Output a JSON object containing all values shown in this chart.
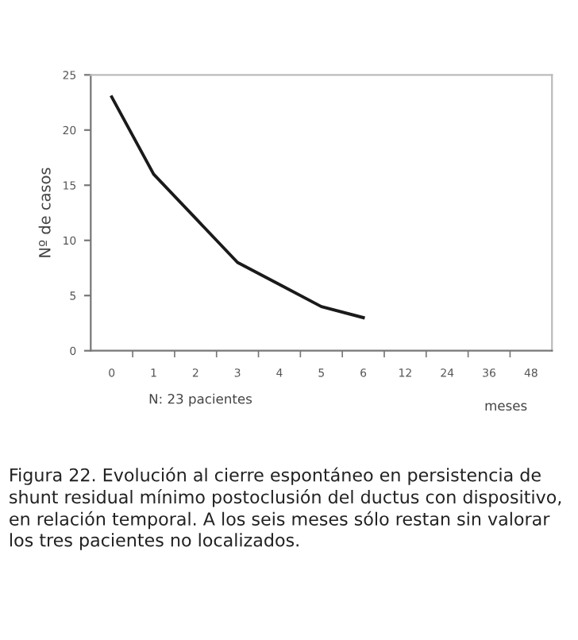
{
  "chart_data": {
    "type": "line",
    "categories": [
      "0",
      "1",
      "2",
      "3",
      "4",
      "5",
      "6",
      "12",
      "24",
      "36",
      "48"
    ],
    "series": [
      {
        "color": "#1a1a1a",
        "values": [
          23,
          16,
          12,
          8,
          6,
          4,
          3,
          null,
          null,
          null,
          null
        ]
      }
    ],
    "ylabel": "Nº de casos",
    "xlabel": "meses",
    "ylim": [
      0,
      25
    ],
    "yticks": [
      0,
      5,
      10,
      15,
      20,
      25
    ],
    "grid": false,
    "legend": false,
    "marker": "none",
    "line_style": "solid",
    "annotations": [
      "N: 23 pacientes",
      "Figura 22. Evolución al cierre espontáneo en persistencia de shunt residual mínimo postoclusión del ductus con dispositivo, en relación temporal. A los seis meses sólo restan sin valorar los tres pacientes no localizados."
    ]
  }
}
